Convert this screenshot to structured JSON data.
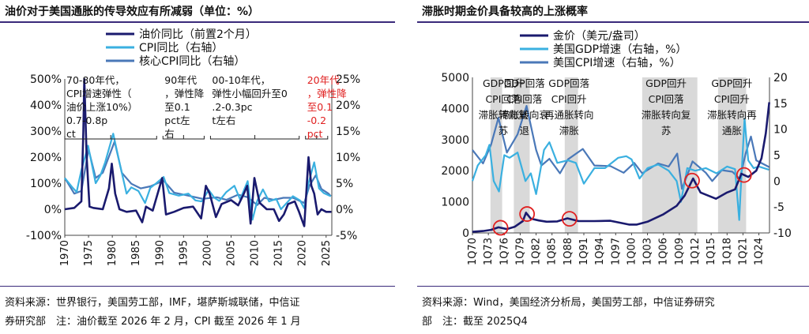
{
  "left": {
    "title": "油价对于美国通胀的传导效应有所减弱（单位：%）",
    "source_line1": "资料来源：世界银行，美国劳工部，IMF，堪萨斯城联储，中信证",
    "source_line2": "券研究部　注：油价截至 2026 年 2 月，CPI 截至 2026 年 1 月",
    "chart_data": {
      "type": "line",
      "legend_position": "top",
      "y_left_ticks": [
        "500%",
        "400%",
        "300%",
        "200%",
        "100%",
        "0%",
        "-100%"
      ],
      "y_left_range": [
        -100,
        500
      ],
      "y_right_ticks": [
        "25%",
        "20%",
        "15%",
        "10%",
        "5%",
        "0%",
        "-5%"
      ],
      "y_right_range": [
        -5,
        25
      ],
      "x_ticks": [
        "1970",
        "1975",
        "1980",
        "1985",
        "1990",
        "1995",
        "2000",
        "2005",
        "2010",
        "2015",
        "2020",
        "2025"
      ],
      "x_range": [
        1970,
        2026.2
      ],
      "series": [
        {
          "name": "油价同比（前置2个月）",
          "axis": "left",
          "color": "#1a1a6e",
          "x": [
            1970,
            1972,
            1973.5,
            1973.9,
            1974.1,
            1974.6,
            1975.2,
            1976,
            1978,
            1979.3,
            1979.9,
            1980.6,
            1981.5,
            1983,
            1985,
            1986.3,
            1987.1,
            1988.5,
            1990.5,
            1991.3,
            1993,
            1995,
            1997,
            1998.7,
            1999.7,
            2000.5,
            2001.8,
            2003,
            2005,
            2006.5,
            2007.7,
            2008.4,
            2009.1,
            2009.9,
            2011,
            2012.5,
            2014,
            2015.1,
            2016.1,
            2017,
            2018.4,
            2019.3,
            2020.4,
            2021.3,
            2021.9,
            2022.5,
            2023.2,
            2024,
            2025,
            2026.1
          ],
          "y": [
            0,
            5,
            30,
            300,
            500,
            200,
            10,
            5,
            0,
            80,
            175,
            60,
            0,
            -10,
            -5,
            -50,
            10,
            -5,
            120,
            -20,
            -10,
            5,
            10,
            -35,
            90,
            60,
            -30,
            20,
            35,
            15,
            60,
            90,
            -55,
            120,
            25,
            0,
            0,
            -45,
            -20,
            20,
            30,
            -10,
            -65,
            200,
            90,
            60,
            -20,
            0,
            -10,
            -10
          ]
        },
        {
          "name": "CPI同比（右轴）",
          "axis": "right",
          "color": "#3ab0e0",
          "x": [
            1970,
            1971.5,
            1972.5,
            1973.5,
            1974.9,
            1976.5,
            1977.5,
            1978.5,
            1980.2,
            1981.5,
            1983,
            1984,
            1985.5,
            1986.9,
            1988,
            1989,
            1990.8,
            1992,
            1994,
            1996,
            1997.5,
            1998.8,
            2000.3,
            2001.5,
            2002.5,
            2004,
            2005.7,
            2006.9,
            2008.5,
            2009.5,
            2010.5,
            2011.7,
            2013,
            2014.5,
            2015.5,
            2016.5,
            2018,
            2019.5,
            2020.4,
            2021.3,
            2022.5,
            2023.5,
            2024.5,
            2025.5,
            2026
          ],
          "y": [
            6,
            4.3,
            3.3,
            7.5,
            12.2,
            5,
            6.5,
            9,
            14.5,
            9,
            3,
            4.2,
            3.5,
            1.2,
            4.1,
            4.8,
            6.2,
            3.1,
            2.6,
            3,
            1.7,
            1.5,
            3.7,
            2.2,
            1.6,
            3.3,
            4.5,
            1.9,
            5.4,
            -2,
            1.6,
            3.8,
            1.5,
            2,
            0,
            1,
            2.5,
            1.7,
            0.2,
            5,
            9,
            4,
            3.1,
            2.7,
            2.5
          ]
        },
        {
          "name": "核心CPI同比（右轴）",
          "axis": "right",
          "color": "#4a78b8",
          "x": [
            1970,
            1972,
            1973.5,
            1975,
            1976.5,
            1978,
            1980.5,
            1982,
            1984,
            1986,
            1988,
            1990.8,
            1993,
            1996,
            1999,
            2002,
            2004,
            2006.5,
            2008.5,
            2010.5,
            2012,
            2014,
            2016,
            2018,
            2020.4,
            2021.5,
            2022.8,
            2024,
            2025.5,
            2026
          ],
          "y": [
            6,
            3,
            3.5,
            11.5,
            6,
            7,
            13,
            7,
            4.9,
            4,
            4.4,
            5.5,
            3.2,
            2.6,
            2,
            2.3,
            1.8,
            2.8,
            2.3,
            0.8,
            2.2,
            1.8,
            2.2,
            2.2,
            1.2,
            4.5,
            6.5,
            3.9,
            3,
            2.5
          ]
        }
      ],
      "era_annotations": [
        {
          "text": "70-80年代，CPI增速弹性（油价上涨10%）0.7-0.8pct",
          "x_span": [
            1970,
            1990
          ],
          "color": "#111111"
        },
        {
          "text": "90年代，弹性降至0.1pct左右",
          "x_span": [
            1990,
            2000
          ],
          "color": "#111111"
        },
        {
          "text": "00-10年代，弹性小幅回升至0.2-0.3pct左右",
          "x_span": [
            2000,
            2020
          ],
          "color": "#111111"
        },
        {
          "text": "20年代，弹性降至0.1-0.2pct",
          "x_span": [
            2020,
            2026
          ],
          "color": "#e02020"
        }
      ]
    }
  },
  "right": {
    "title": "滞胀时期金价具备较高的上涨概率",
    "source_line1": "资料来源：Wind，美国经济分析局，美国劳工部，中信证券研究",
    "source_line2": "部　注：截至 2025Q4",
    "chart_data": {
      "type": "line",
      "legend_position": "top",
      "y_left_ticks": [
        "5000",
        "4000",
        "3000",
        "2000",
        "1000",
        "0"
      ],
      "y_left_range": [
        0,
        5000
      ],
      "y_right_ticks": [
        "20",
        "15",
        "10",
        "5",
        "0",
        "-5",
        "-10"
      ],
      "y_right_range": [
        -10,
        20
      ],
      "x_ticks": [
        "1Q70",
        "1Q73",
        "1Q76",
        "1Q79",
        "1Q82",
        "1Q85",
        "1Q88",
        "1Q91",
        "1Q94",
        "1Q97",
        "1Q00",
        "1Q03",
        "1Q06",
        "1Q09",
        "1Q12",
        "1Q15",
        "1Q18",
        "1Q21",
        "1Q24"
      ],
      "x_range": [
        1970,
        2026
      ],
      "series": [
        {
          "name": "金价（美元/盎司）",
          "axis": "left",
          "color": "#1a1a6e",
          "x": [
            1970,
            1972,
            1973.5,
            1974.9,
            1976.5,
            1978,
            1979.5,
            1980.1,
            1981,
            1982.5,
            1984,
            1986,
            1987.9,
            1990,
            1993,
            1996,
            1999.5,
            2001,
            2003,
            2006,
            2008.5,
            2010,
            2011.6,
            2013,
            2015.9,
            2018,
            2019.5,
            2020.7,
            2022,
            2023.5,
            2024.5,
            2025.3,
            2025.95
          ],
          "y": [
            35,
            60,
            100,
            180,
            125,
            200,
            380,
            650,
            460,
            400,
            360,
            370,
            470,
            380,
            380,
            390,
            270,
            270,
            360,
            600,
            870,
            1200,
            1750,
            1300,
            1100,
            1300,
            1400,
            1900,
            1800,
            2000,
            2400,
            3200,
            4200
          ]
        },
        {
          "name": "美国GDP增速（右轴，%）",
          "axis": "right",
          "color": "#3ab0e0",
          "x": [
            1970,
            1971,
            1972.5,
            1973.2,
            1974,
            1975,
            1976,
            1977,
            1978.5,
            1980,
            1981,
            1982,
            1983.5,
            1984.5,
            1986,
            1988,
            1989.5,
            1991,
            1993,
            1995,
            1997.5,
            1999,
            2000,
            2001.5,
            2003,
            2005,
            2007,
            2008.5,
            2009.3,
            2010.5,
            2012,
            2014,
            2016,
            2018,
            2019.5,
            2020.3,
            2020.5,
            2021.3,
            2022,
            2023,
            2024,
            2025.9
          ],
          "y": [
            0,
            3,
            5,
            7,
            0,
            -2,
            5,
            4.5,
            5.5,
            0,
            1.5,
            -2.5,
            6,
            7.5,
            3.5,
            4,
            3.5,
            -0.5,
            2.5,
            2.5,
            4.5,
            4.8,
            4.2,
            0.5,
            2.5,
            3.2,
            2,
            0,
            -4,
            2.5,
            2,
            2.5,
            1.5,
            2.8,
            2.3,
            -7.5,
            -3,
            12,
            4,
            2.5,
            2.8,
            2.2
          ]
        },
        {
          "name": "美国CPI增速（右轴，%）",
          "axis": "right",
          "color": "#4a78b8",
          "x": [
            1970,
            1972,
            1973.5,
            1974.9,
            1976.5,
            1978.5,
            1980.2,
            1982,
            1983,
            1984.5,
            1986.5,
            1988,
            1990.8,
            1993,
            1996,
            1998.5,
            2000.5,
            2002,
            2005,
            2007,
            2008.6,
            2009.5,
            2011.5,
            2014,
            2015.2,
            2017,
            2019,
            2020.4,
            2021.5,
            2022.5,
            2023.5,
            2025.95
          ],
          "y": [
            6,
            3.4,
            7,
            12.2,
            5.5,
            9,
            14.5,
            6,
            3,
            4.3,
            1.5,
            4.2,
            6.2,
            3,
            2.9,
            1.6,
            3.5,
            1.5,
            3.4,
            2.8,
            5.3,
            -1.5,
            3.8,
            1.6,
            0,
            2.1,
            1.8,
            0.4,
            5.3,
            8.6,
            4,
            2.7
          ]
        }
      ],
      "shaded_periods": [
        [
          1973.4,
          1975.6
        ],
        [
          1977.8,
          1980.8
        ],
        [
          1987.4,
          1989.9
        ],
        [
          2002,
          2012.4
        ],
        [
          2016.3,
          2021.6
        ]
      ],
      "highlight_circles": [
        1975.3,
        1980.3,
        1988.3,
        2011.4,
        2021.2
      ],
      "period_labels": [
        {
          "text": "GDP回升CPI回落滞胀转向复苏",
          "x": 1975.8
        },
        {
          "text": "GDP回落CPI回落滞胀转向衰退",
          "x": 1979.8
        },
        {
          "text": "GDP回落CPI回升再通胀转向滞胀",
          "x": 1988.2
        },
        {
          "text": "GDP回升CPI回落滞胀转向复苏",
          "x": 2006.5
        },
        {
          "text": "GDP回升CPI回升滞胀转向再通胀",
          "x": 2018.9
        }
      ]
    }
  }
}
